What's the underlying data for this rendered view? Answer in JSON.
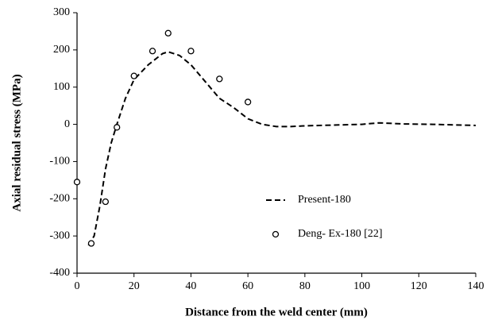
{
  "chart_data": {
    "type": "line",
    "xlabel": "Distance from the weld center (mm)",
    "ylabel": "Axial residual stress (MPa)",
    "xlim": [
      0,
      140
    ],
    "xticks": [
      0,
      20,
      40,
      60,
      80,
      100,
      120,
      140
    ],
    "ylim": [
      -400,
      300
    ],
    "yticks": [
      -400,
      -300,
      -200,
      -100,
      0,
      100,
      200,
      300
    ],
    "legend": "lower-center",
    "series": [
      {
        "name": "Present-180",
        "type": "line",
        "dash": "dashed",
        "color": "#000000",
        "x": [
          4,
          6,
          8,
          10,
          12,
          14,
          17,
          20,
          25,
          30,
          32,
          36,
          40,
          45,
          50,
          55,
          60,
          65,
          70,
          75,
          80,
          90,
          100,
          106,
          115,
          125,
          140
        ],
        "values": [
          -325,
          -300,
          -220,
          -120,
          -50,
          0,
          70,
          120,
          160,
          190,
          195,
          185,
          160,
          115,
          70,
          45,
          15,
          0,
          -6,
          -6,
          -4,
          -2,
          0,
          4,
          1,
          0,
          -3
        ]
      },
      {
        "name": "Deng- Ex-180 [22]",
        "type": "scatter",
        "marker": "circle",
        "color": "#000000",
        "x": [
          0,
          5,
          10,
          14,
          20,
          26.5,
          32,
          40,
          50,
          60
        ],
        "values": [
          -155,
          -320,
          -208,
          -8,
          130,
          197,
          245,
          197,
          122,
          60
        ]
      }
    ]
  }
}
